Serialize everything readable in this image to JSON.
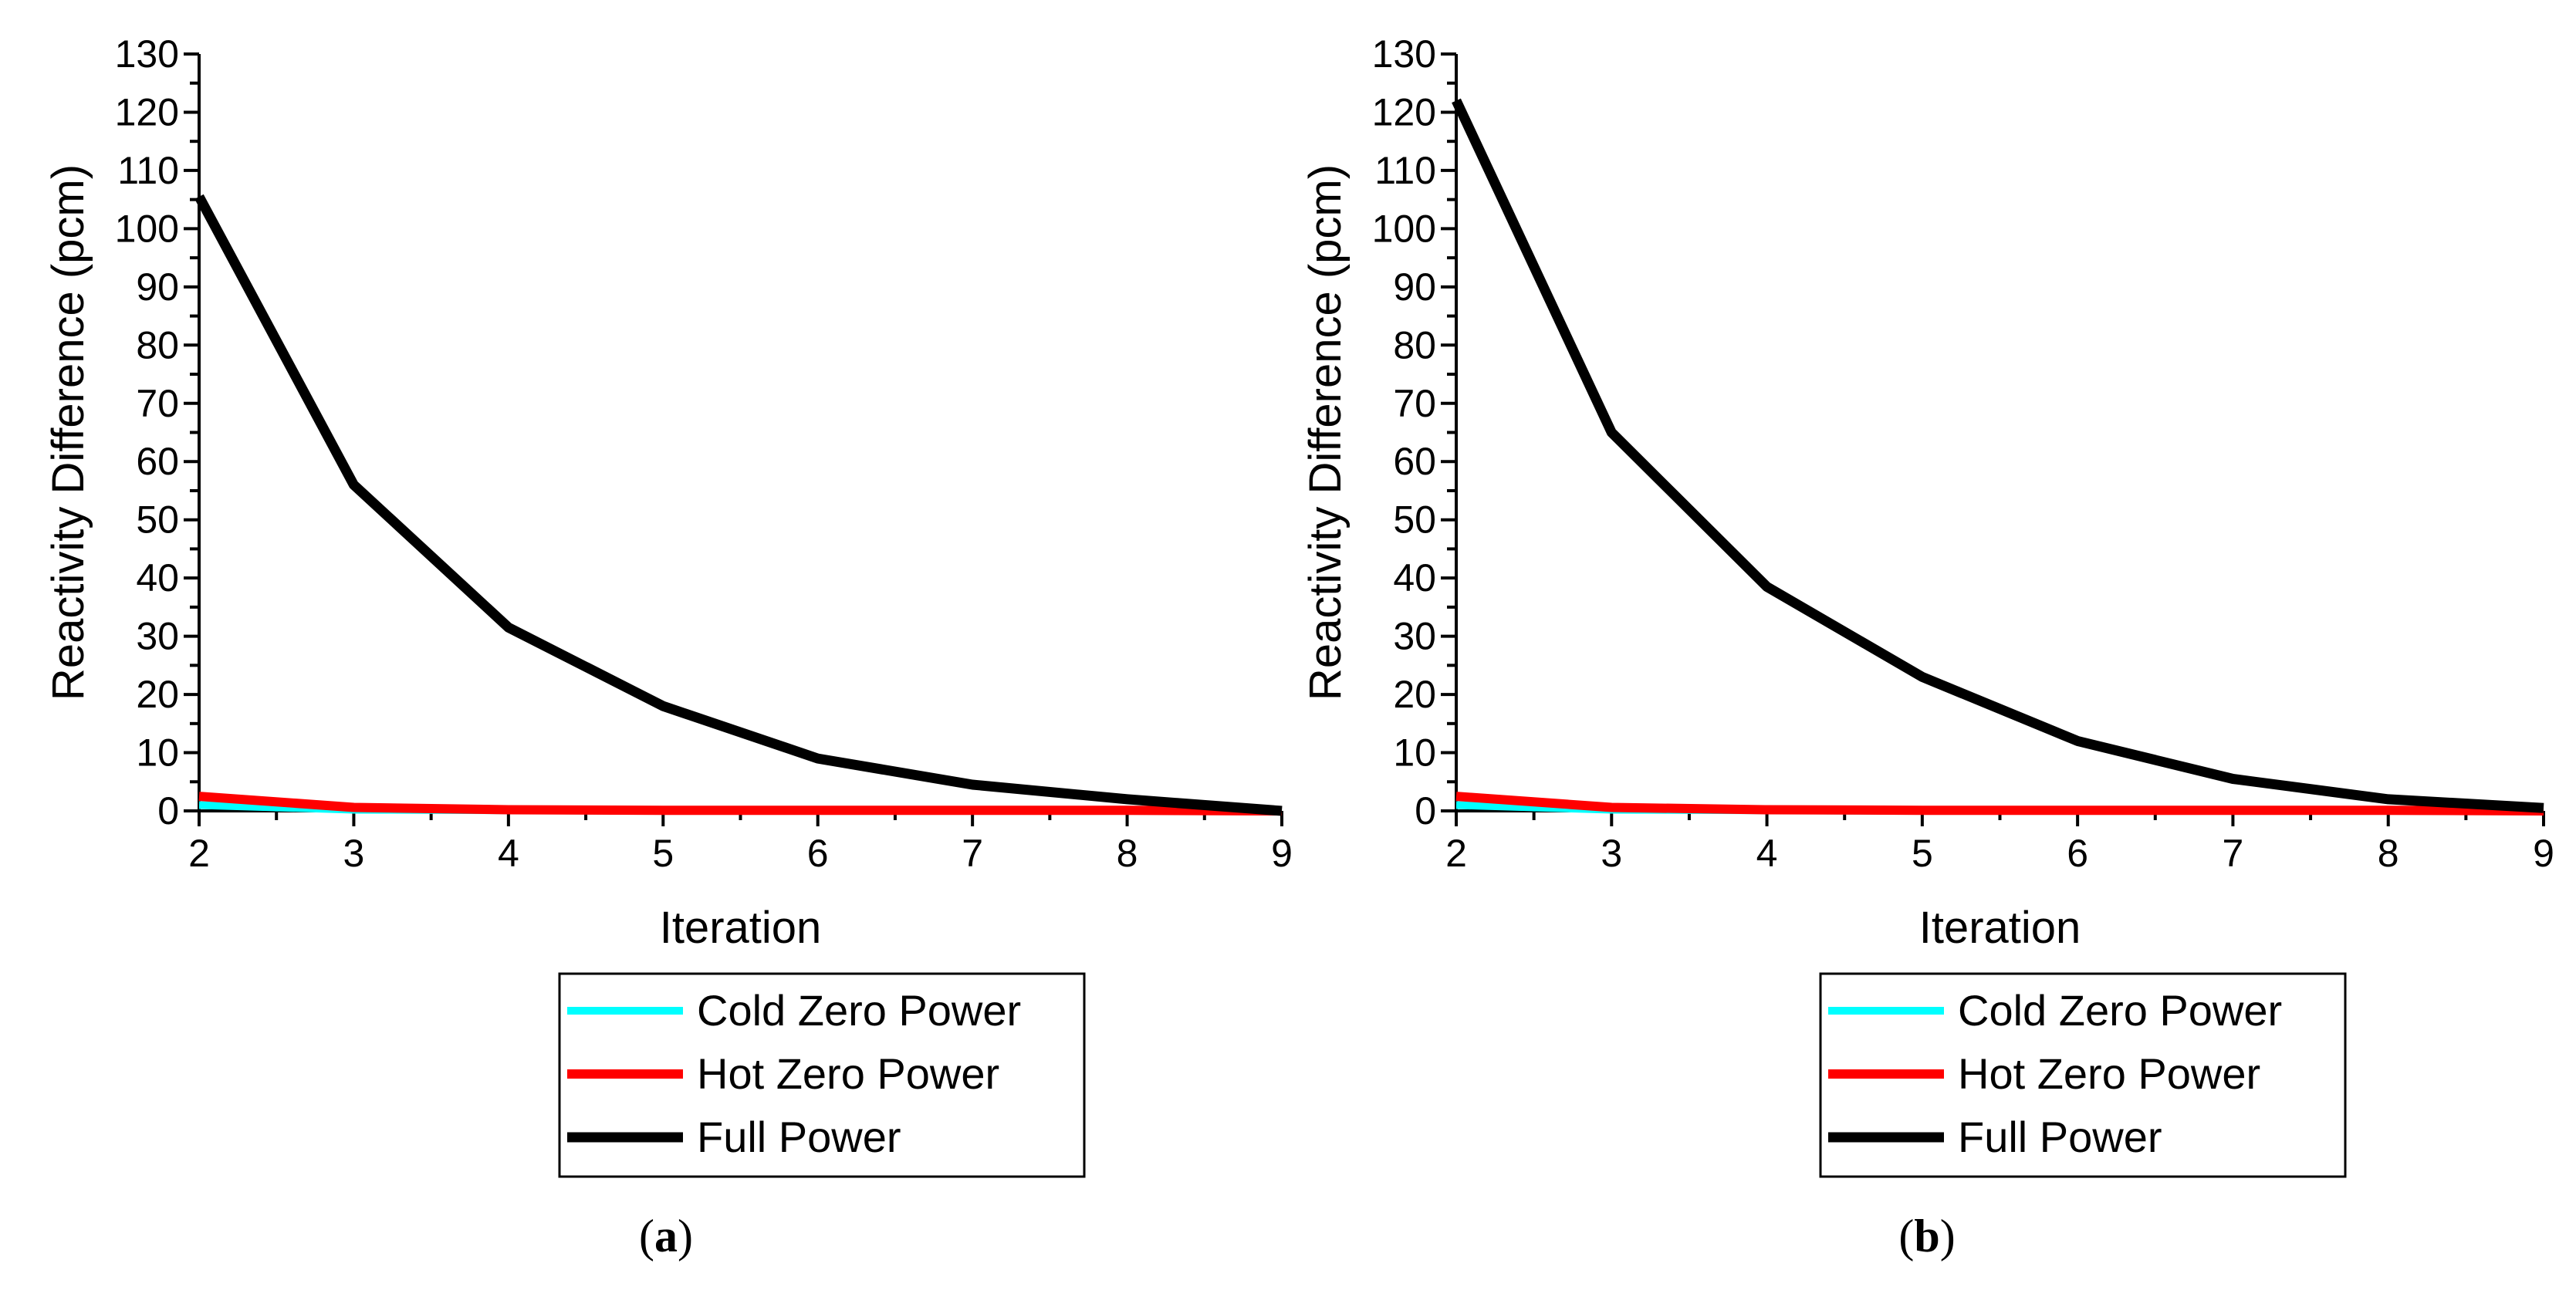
{
  "panel_labels": {
    "a": {
      "open": "(",
      "letter": "a",
      "close": ")"
    },
    "b": {
      "open": "(",
      "letter": "b",
      "close": ")"
    }
  },
  "colors": {
    "cold": "#00ffff",
    "hot": "#ff0000",
    "full": "#000000",
    "axis": "#000000"
  },
  "chart_data": [
    {
      "type": "line",
      "panel": "a",
      "xlabel": "Iteration",
      "ylabel": "Reactivity Difference (pcm)",
      "xlim": [
        2,
        9
      ],
      "ylim": [
        0,
        130
      ],
      "xticks": [
        "2",
        "3",
        "4",
        "5",
        "6",
        "7",
        "8",
        "9"
      ],
      "yticks": [
        "0",
        "10",
        "20",
        "30",
        "40",
        "50",
        "60",
        "70",
        "80",
        "90",
        "100",
        "110",
        "120",
        "130"
      ],
      "grid": false,
      "legend_position": "below",
      "x": [
        2,
        3,
        4,
        5,
        6,
        7,
        8,
        9
      ],
      "series": [
        {
          "name": "Cold Zero Power",
          "color": "#00ffff",
          "values": [
            1.0,
            0.2,
            0.1,
            0.0,
            0.0,
            0.0,
            0.0,
            0.0
          ]
        },
        {
          "name": "Hot Zero Power",
          "color": "#ff0000",
          "values": [
            2.5,
            0.6,
            0.2,
            0.1,
            0.1,
            0.1,
            0.1,
            0.0
          ]
        },
        {
          "name": "Full Power",
          "color": "#000000",
          "values": [
            105.5,
            56,
            31.5,
            18,
            9,
            4.5,
            2,
            0
          ]
        }
      ]
    },
    {
      "type": "line",
      "panel": "b",
      "xlabel": "Iteration",
      "ylabel": "Reactivity Difference (pcm)",
      "xlim": [
        2,
        9
      ],
      "ylim": [
        0,
        130
      ],
      "xticks": [
        "2",
        "3",
        "4",
        "5",
        "6",
        "7",
        "8",
        "9"
      ],
      "yticks": [
        "0",
        "10",
        "20",
        "30",
        "40",
        "50",
        "60",
        "70",
        "80",
        "90",
        "100",
        "110",
        "120",
        "130"
      ],
      "grid": false,
      "legend_position": "below",
      "x": [
        2,
        3,
        4,
        5,
        6,
        7,
        8,
        9
      ],
      "series": [
        {
          "name": "Cold Zero Power",
          "color": "#00ffff",
          "values": [
            1.0,
            0.2,
            0.1,
            0.0,
            0.0,
            0.0,
            0.0,
            0.0
          ]
        },
        {
          "name": "Hot Zero Power",
          "color": "#ff0000",
          "values": [
            2.5,
            0.6,
            0.2,
            0.1,
            0.1,
            0.1,
            0.1,
            0.0
          ]
        },
        {
          "name": "Full Power",
          "color": "#000000",
          "values": [
            122,
            65,
            38.5,
            23,
            12,
            5.5,
            2,
            0.5
          ]
        }
      ]
    }
  ]
}
